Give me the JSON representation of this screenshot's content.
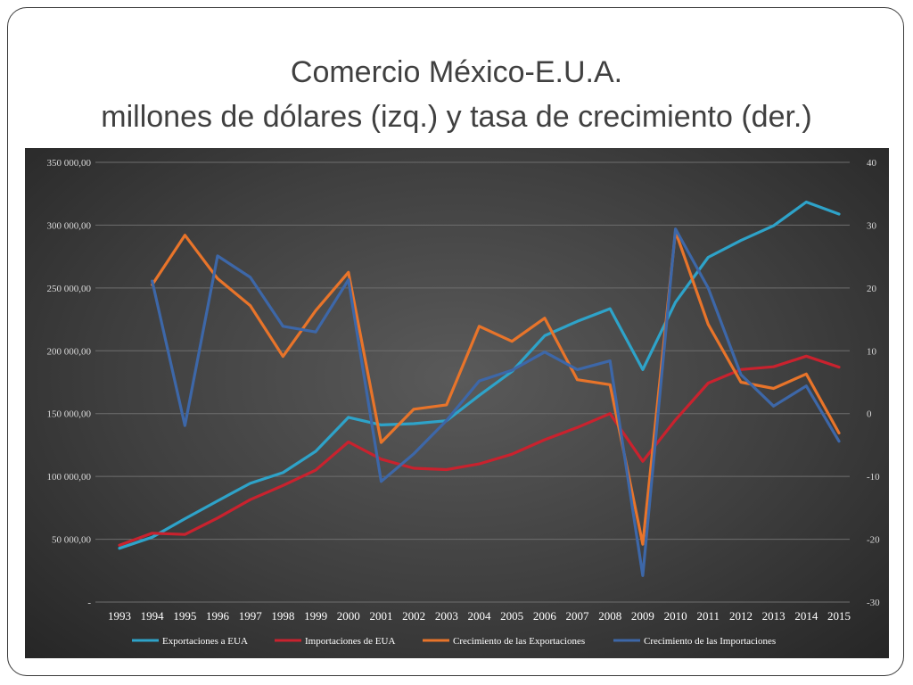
{
  "slide": {
    "title_line1": "Comercio México-E.U.A.",
    "title_line2": "millones de dólares (izq.) y tasa de crecimiento (der.)"
  },
  "chart_data": {
    "type": "line",
    "title": "Comercio México-E.U.A. millones de dólares (izq.) y tasa de crecimiento (der.)",
    "x": [
      "1993",
      "1994",
      "1995",
      "1996",
      "1997",
      "1998",
      "1999",
      "2000",
      "2001",
      "2002",
      "2003",
      "2004",
      "2005",
      "2006",
      "2007",
      "2008",
      "2009",
      "2010",
      "2011",
      "2012",
      "2013",
      "2014",
      "2015"
    ],
    "y_left": {
      "ylim": [
        0,
        350000
      ],
      "tick_values": [
        0,
        50000,
        100000,
        150000,
        200000,
        250000,
        300000,
        350000
      ],
      "tick_labels": [
        "-",
        "50 000,00",
        "100 000,00",
        "150 000,00",
        "200 000,00",
        "250 000,00",
        "300 000,00",
        "350 000,00"
      ]
    },
    "y_right": {
      "ylim": [
        -30,
        40
      ],
      "tick_values": [
        -30,
        -20,
        -10,
        0,
        10,
        20,
        30,
        40
      ],
      "tick_labels": [
        "-30",
        "-20",
        "-10",
        "0",
        "10",
        "20",
        "30",
        "40"
      ]
    },
    "grid": true,
    "legend_position": "bottom",
    "series": [
      {
        "name": "Exportaciones a EUA",
        "axis": "left",
        "color": "#2ea3c9",
        "values": [
          42800,
          51600,
          66300,
          80500,
          94500,
          103000,
          120000,
          147000,
          141000,
          142000,
          144300,
          164500,
          183500,
          212000,
          223400,
          233500,
          185000,
          238700,
          274400,
          287800,
          299500,
          318400,
          308800
        ]
      },
      {
        "name": "Importaciones de EUA",
        "axis": "left",
        "color": "#c9222e",
        "values": [
          45300,
          54800,
          53800,
          66900,
          81500,
          92800,
          105000,
          127400,
          113700,
          106500,
          105400,
          110000,
          117700,
          129200,
          138900,
          150000,
          112000,
          145000,
          174300,
          185100,
          187300,
          195700,
          187000
        ]
      },
      {
        "name": "Crecimiento de las Exportaciones",
        "axis": "right",
        "color": "#e8742a",
        "values": [
          null,
          20.5,
          28.4,
          21.5,
          17.2,
          9.1,
          16.4,
          22.5,
          -4.6,
          0.7,
          1.4,
          13.9,
          11.5,
          15.2,
          5.4,
          4.6,
          -20.8,
          29.0,
          14.2,
          5.0,
          4.0,
          6.3,
          -3.1
        ]
      },
      {
        "name": "Crecimiento de las Importaciones",
        "axis": "right",
        "color": "#3d67a8",
        "values": [
          null,
          21.1,
          -1.9,
          25.1,
          21.7,
          13.9,
          13.0,
          21.3,
          -10.8,
          -6.4,
          -1.1,
          5.2,
          6.9,
          9.8,
          7.0,
          8.4,
          -25.8,
          29.4,
          20.0,
          6.2,
          1.2,
          4.4,
          -4.4
        ]
      }
    ]
  }
}
